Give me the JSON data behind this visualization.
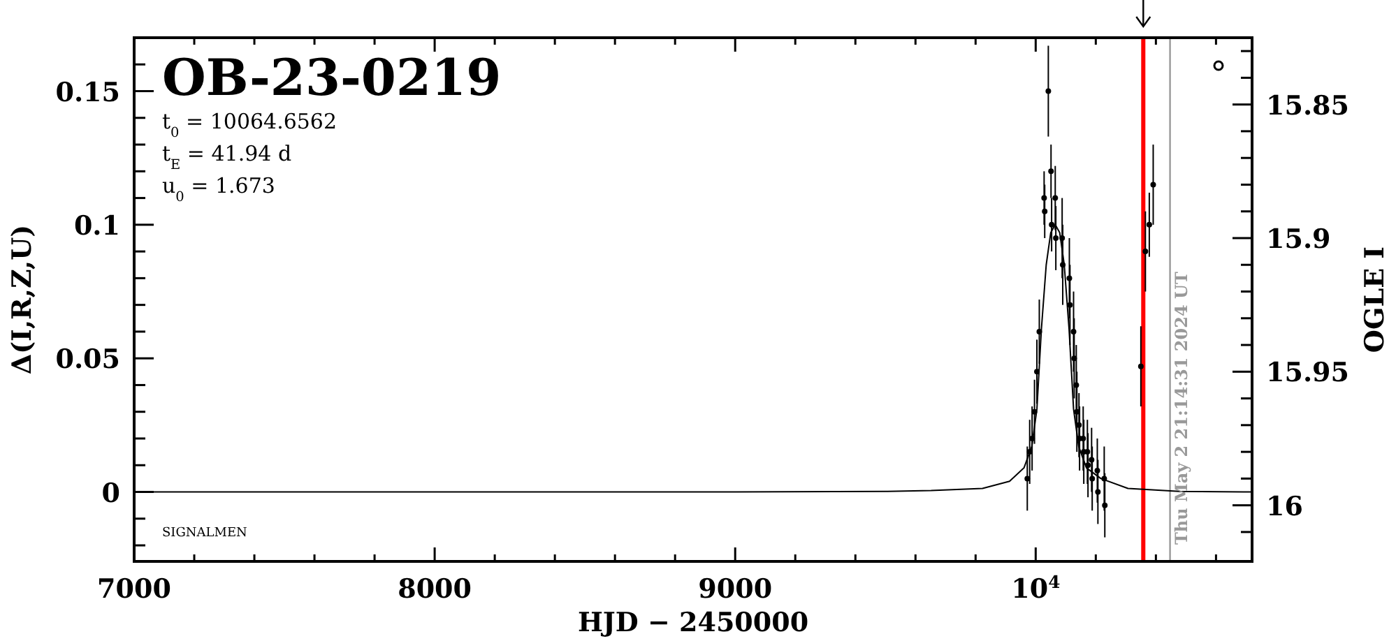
{
  "chart_data": {
    "type": "scatter",
    "title": "OB-23-0219",
    "xlabel": "HJD − 2450000",
    "ylabel": "Δ(I,R,Z,U)",
    "y2label": "OGLE I",
    "xlim": [
      7000,
      10720
    ],
    "ylim": [
      -0.026,
      0.17
    ],
    "y2lim": [
      16.021,
      15.825
    ],
    "xticks": [
      7000,
      {
        "value": 7200,
        "label": null
      },
      {
        "value": 7400,
        "label": null
      },
      {
        "value": 7600,
        "label": null
      },
      {
        "value": 7800,
        "label": null
      },
      8000,
      {
        "value": 8200,
        "label": null
      },
      {
        "value": 8400,
        "label": null
      },
      {
        "value": 8600,
        "label": null
      },
      {
        "value": 8800,
        "label": null
      },
      9000,
      {
        "value": 9200,
        "label": null
      },
      {
        "value": 9400,
        "label": null
      },
      {
        "value": 9600,
        "label": null
      },
      {
        "value": 9800,
        "label": null
      },
      {
        "value": 10000,
        "label": "10$^{4}$"
      },
      {
        "value": 10200,
        "label": null
      },
      {
        "value": 10400,
        "label": null
      },
      {
        "value": 10600,
        "label": null
      }
    ],
    "yticks": [
      {
        "value": -0.02,
        "label": null
      },
      {
        "value": -0.01,
        "label": null
      },
      0,
      {
        "value": 0.01,
        "label": null
      },
      {
        "value": 0.02,
        "label": null
      },
      {
        "value": 0.03,
        "label": null
      },
      {
        "value": 0.04,
        "label": null
      },
      0.05,
      {
        "value": 0.06,
        "label": null
      },
      {
        "value": 0.07,
        "label": null
      },
      {
        "value": 0.08,
        "label": null
      },
      {
        "value": 0.09,
        "label": null
      },
      0.1,
      {
        "value": 0.11,
        "label": null
      },
      {
        "value": 0.12,
        "label": null
      },
      {
        "value": 0.13,
        "label": null
      },
      {
        "value": 0.14,
        "label": null
      },
      0.15,
      {
        "value": 0.16,
        "label": null
      }
    ],
    "y2ticks": [
      {
        "value": 16.01,
        "label": null
      },
      16,
      {
        "value": 15.99,
        "label": null
      },
      {
        "value": 15.98,
        "label": null
      },
      {
        "value": 15.97,
        "label": null
      },
      {
        "value": 15.96,
        "label": null
      },
      15.95,
      {
        "value": 15.94,
        "label": null
      },
      {
        "value": 15.93,
        "label": null
      },
      {
        "value": 15.92,
        "label": null
      },
      {
        "value": 15.91,
        "label": null
      },
      15.9,
      {
        "value": 15.89,
        "label": null
      },
      {
        "value": 15.88,
        "label": null
      },
      {
        "value": 15.87,
        "label": null
      },
      {
        "value": 15.86,
        "label": null
      },
      15.85,
      {
        "value": 15.84,
        "label": null
      },
      {
        "value": 15.83,
        "label": null
      }
    ],
    "grid": false,
    "series": [
      {
        "type": "line",
        "color": "#000000",
        "marker": "none",
        "line_style": "solid",
        "x": [
          7000,
          8000,
          9000,
          9500,
          9652,
          9823,
          9913,
          9961,
          9987,
          10004,
          10019,
          10035,
          10050,
          10065,
          10080,
          10095,
          10111,
          10126,
          10143,
          10169,
          10217,
          10307,
          10478,
          10720
        ],
        "values": [
          0,
          0,
          0,
          0.0002,
          0.0005,
          0.0013,
          0.004,
          0.009,
          0.017,
          0.031,
          0.061,
          0.085,
          0.097,
          0.1,
          0.097,
          0.085,
          0.061,
          0.031,
          0.017,
          0.009,
          0.005,
          0.0013,
          0.0002,
          0
        ]
      },
      {
        "color": "#000000",
        "marker": "circle",
        "x": [
          9972,
          9980,
          9988,
          9996,
          10004,
          10012,
          10028,
          10030,
          10042,
          10051,
          10053,
          10065,
          10067,
          10088,
          10090,
          10112,
          10114,
          10126,
          10128,
          10135,
          10137,
          10144,
          10146,
          10158,
          10160,
          10172,
          10174,
          10186,
          10188,
          10205,
          10207,
          10228,
          10230,
          10350,
          10365,
          10378,
          10391
        ],
        "values": [
          0.005,
          0.015,
          0.02,
          0.03,
          0.045,
          0.06,
          0.11,
          0.105,
          0.15,
          0.12,
          0.1,
          0.11,
          0.095,
          0.095,
          0.085,
          0.08,
          0.07,
          0.06,
          0.05,
          0.04,
          0.03,
          0.025,
          0.02,
          0.02,
          0.015,
          0.015,
          0.01,
          0.012,
          0.005,
          0.008,
          0,
          0.005,
          -0.005,
          0.047,
          0.09,
          0.1,
          0.115
        ],
        "errors": [
          0.012,
          0.012,
          0.012,
          0.012,
          0.012,
          0.012,
          0.01,
          0.01,
          0.017,
          0.01,
          0.01,
          0.012,
          0.012,
          0.015,
          0.015,
          0.015,
          0.015,
          0.015,
          0.015,
          0.015,
          0.015,
          0.012,
          0.012,
          0.012,
          0.012,
          0.012,
          0.012,
          0.012,
          0.012,
          0.012,
          0.012,
          0.012,
          0.012,
          0.015,
          0.015,
          0.012,
          0.015
        ]
      }
    ],
    "ref_lines": [
      {
        "axis": "x",
        "value": 10358,
        "color": "#ff0000"
      },
      {
        "axis": "x",
        "value": 10447,
        "color": "#999999"
      }
    ],
    "annotations": [
      "t$_{0}$ = 10064.6562",
      "t$_{E}$ = 41.94 d",
      "u$_{0}$ = 1.673",
      "SIGNALMEN",
      "Thu May  2 21:14:31 2024 UT"
    ]
  }
}
